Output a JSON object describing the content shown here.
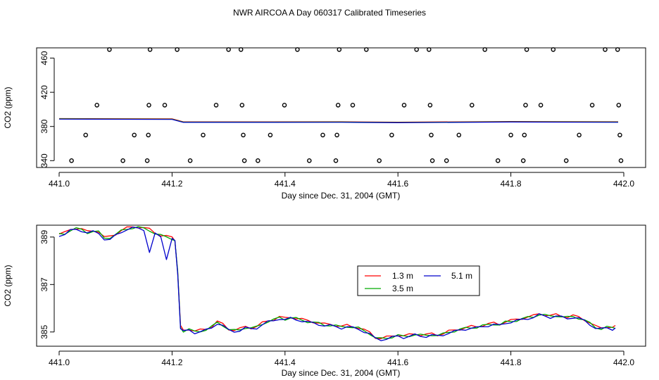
{
  "title": "NWR AIRCOA A  Day 060317  Calibrated Timeseries",
  "chart_data": [
    {
      "type": "scatter",
      "xlabel": "Day since Dec. 31, 2004 (GMT)",
      "ylabel": "CO2 (ppm)",
      "xlim": [
        441.0,
        442.0
      ],
      "ylim": [
        332,
        472
      ],
      "xticks": [
        "441.0",
        "441.2",
        "441.4",
        "441.6",
        "441.8",
        "442.0"
      ],
      "yticks": [
        "340",
        "380",
        "420",
        "460"
      ],
      "line_series": [
        {
          "color": "#ff0000",
          "values": [
            [
              441.0,
              388.9
            ],
            [
              441.2,
              388.6
            ],
            [
              441.22,
              385.1
            ],
            [
              441.5,
              385.2
            ],
            [
              441.6,
              384.7
            ],
            [
              441.8,
              385.5
            ],
            [
              441.99,
              385.2
            ]
          ]
        },
        {
          "color": "#00aa00",
          "values": [
            [
              441.0,
              388.9
            ],
            [
              441.2,
              388.6
            ],
            [
              441.22,
              385.1
            ],
            [
              441.5,
              385.2
            ],
            [
              441.6,
              384.7
            ],
            [
              441.8,
              385.5
            ],
            [
              441.99,
              385.2
            ]
          ]
        },
        {
          "color": "#0000cc",
          "values": [
            [
              441.0,
              388.9
            ],
            [
              441.2,
              388.6
            ],
            [
              441.22,
              385.1
            ],
            [
              441.5,
              385.2
            ],
            [
              441.6,
              384.7
            ],
            [
              441.8,
              385.5
            ],
            [
              441.99,
              385.2
            ]
          ]
        }
      ],
      "points": [
        [
          441.022,
          340
        ],
        [
          441.047,
          370
        ],
        [
          441.067,
          405
        ],
        [
          441.089,
          470
        ],
        [
          441.113,
          340
        ],
        [
          441.133,
          370
        ],
        [
          441.156,
          340
        ],
        [
          441.158,
          370
        ],
        [
          441.159,
          405
        ],
        [
          441.161,
          470
        ],
        [
          441.187,
          405
        ],
        [
          441.209,
          470
        ],
        [
          441.232,
          340
        ],
        [
          441.255,
          370
        ],
        [
          441.278,
          405
        ],
        [
          441.3,
          470
        ],
        [
          441.322,
          470
        ],
        [
          441.324,
          405
        ],
        [
          441.326,
          370
        ],
        [
          441.328,
          340
        ],
        [
          441.352,
          340
        ],
        [
          441.374,
          370
        ],
        [
          441.399,
          405
        ],
        [
          441.422,
          470
        ],
        [
          441.443,
          340
        ],
        [
          441.467,
          370
        ],
        [
          441.49,
          340
        ],
        [
          441.492,
          370
        ],
        [
          441.494,
          405
        ],
        [
          441.496,
          470
        ],
        [
          441.52,
          405
        ],
        [
          441.544,
          470
        ],
        [
          441.567,
          340
        ],
        [
          441.589,
          370
        ],
        [
          441.611,
          405
        ],
        [
          441.633,
          470
        ],
        [
          441.655,
          470
        ],
        [
          441.657,
          405
        ],
        [
          441.659,
          370
        ],
        [
          441.661,
          340
        ],
        [
          441.686,
          340
        ],
        [
          441.708,
          370
        ],
        [
          441.731,
          405
        ],
        [
          441.754,
          470
        ],
        [
          441.777,
          340
        ],
        [
          441.8,
          370
        ],
        [
          441.822,
          340
        ],
        [
          441.824,
          370
        ],
        [
          441.826,
          405
        ],
        [
          441.828,
          470
        ],
        [
          441.853,
          405
        ],
        [
          441.875,
          470
        ],
        [
          441.898,
          340
        ],
        [
          441.921,
          370
        ],
        [
          441.944,
          405
        ],
        [
          441.967,
          470
        ],
        [
          441.989,
          470
        ],
        [
          441.991,
          405
        ],
        [
          441.993,
          370
        ],
        [
          441.995,
          340
        ]
      ]
    },
    {
      "type": "line",
      "xlabel": "Day since Dec. 31, 2004 (GMT)",
      "ylabel": "CO2 (ppm)",
      "xlim": [
        441.0,
        442.0
      ],
      "ylim": [
        384.4,
        389.5
      ],
      "xticks": [
        "441.0",
        "441.2",
        "441.4",
        "441.6",
        "441.8",
        "442.0"
      ],
      "yticks": [
        "385",
        "387",
        "389"
      ],
      "legend_position": "center-right",
      "base": [
        [
          441.0,
          389.1
        ],
        [
          441.01,
          389.15
        ],
        [
          441.02,
          389.3
        ],
        [
          441.03,
          389.35
        ],
        [
          441.04,
          389.3
        ],
        [
          441.05,
          389.2
        ],
        [
          441.06,
          389.25
        ],
        [
          441.07,
          389.2
        ],
        [
          441.08,
          388.95
        ],
        [
          441.09,
          389.0
        ],
        [
          441.1,
          389.1
        ],
        [
          441.11,
          389.25
        ],
        [
          441.12,
          389.35
        ],
        [
          441.13,
          389.4
        ],
        [
          441.14,
          389.4
        ],
        [
          441.15,
          389.35
        ],
        [
          441.16,
          389.3
        ],
        [
          441.17,
          389.15
        ],
        [
          441.18,
          389.05
        ],
        [
          441.19,
          389.0
        ],
        [
          441.2,
          388.95
        ],
        [
          441.205,
          388.85
        ],
        [
          441.21,
          387.5
        ],
        [
          441.215,
          385.2
        ],
        [
          441.22,
          385.05
        ],
        [
          441.23,
          385.1
        ],
        [
          441.24,
          385.0
        ],
        [
          441.25,
          385.05
        ],
        [
          441.26,
          385.1
        ],
        [
          441.27,
          385.2
        ],
        [
          441.28,
          385.4
        ],
        [
          441.29,
          385.3
        ],
        [
          441.3,
          385.1
        ],
        [
          441.31,
          385.05
        ],
        [
          441.32,
          385.1
        ],
        [
          441.33,
          385.2
        ],
        [
          441.34,
          385.15
        ],
        [
          441.35,
          385.2
        ],
        [
          441.36,
          385.35
        ],
        [
          441.37,
          385.45
        ],
        [
          441.38,
          385.5
        ],
        [
          441.39,
          385.6
        ],
        [
          441.4,
          385.55
        ],
        [
          441.41,
          385.6
        ],
        [
          441.42,
          385.55
        ],
        [
          441.43,
          385.5
        ],
        [
          441.44,
          385.45
        ],
        [
          441.45,
          385.4
        ],
        [
          441.46,
          385.35
        ],
        [
          441.47,
          385.3
        ],
        [
          441.48,
          385.3
        ],
        [
          441.49,
          385.25
        ],
        [
          441.5,
          385.2
        ],
        [
          441.51,
          385.25
        ],
        [
          441.52,
          385.2
        ],
        [
          441.53,
          385.15
        ],
        [
          441.54,
          385.05
        ],
        [
          441.55,
          384.95
        ],
        [
          441.56,
          384.75
        ],
        [
          441.57,
          384.7
        ],
        [
          441.58,
          384.75
        ],
        [
          441.59,
          384.8
        ],
        [
          441.6,
          384.85
        ],
        [
          441.61,
          384.8
        ],
        [
          441.62,
          384.85
        ],
        [
          441.63,
          384.9
        ],
        [
          441.64,
          384.85
        ],
        [
          441.65,
          384.85
        ],
        [
          441.66,
          384.9
        ],
        [
          441.67,
          384.85
        ],
        [
          441.68,
          384.9
        ],
        [
          441.69,
          385.0
        ],
        [
          441.7,
          385.05
        ],
        [
          441.71,
          385.1
        ],
        [
          441.72,
          385.15
        ],
        [
          441.73,
          385.2
        ],
        [
          441.74,
          385.2
        ],
        [
          441.75,
          385.25
        ],
        [
          441.76,
          385.3
        ],
        [
          441.77,
          385.35
        ],
        [
          441.78,
          385.3
        ],
        [
          441.79,
          385.4
        ],
        [
          441.8,
          385.45
        ],
        [
          441.81,
          385.5
        ],
        [
          441.82,
          385.55
        ],
        [
          441.83,
          385.6
        ],
        [
          441.84,
          385.65
        ],
        [
          441.85,
          385.75
        ],
        [
          441.86,
          385.7
        ],
        [
          441.87,
          385.65
        ],
        [
          441.88,
          385.7
        ],
        [
          441.89,
          385.65
        ],
        [
          441.9,
          385.6
        ],
        [
          441.91,
          385.65
        ],
        [
          441.92,
          385.6
        ],
        [
          441.93,
          385.5
        ],
        [
          441.94,
          385.35
        ],
        [
          441.95,
          385.2
        ],
        [
          441.96,
          385.15
        ],
        [
          441.97,
          385.2
        ],
        [
          441.98,
          385.15
        ],
        [
          441.985,
          385.2
        ]
      ],
      "series": [
        {
          "name": "1.3 m",
          "color": "#ff0000",
          "offset": 0.03,
          "wiggle": 0.05
        },
        {
          "name": "3.5 m",
          "color": "#00aa00",
          "offset": 0.0,
          "wiggle": 0.06
        },
        {
          "name": "5.1 m",
          "color": "#0000cc",
          "offset": -0.03,
          "wiggle": 0.05,
          "dips": [
            [
              441.09,
              388.9
            ],
            [
              441.16,
              388.35
            ],
            [
              441.19,
              388.05
            ]
          ]
        }
      ]
    }
  ]
}
